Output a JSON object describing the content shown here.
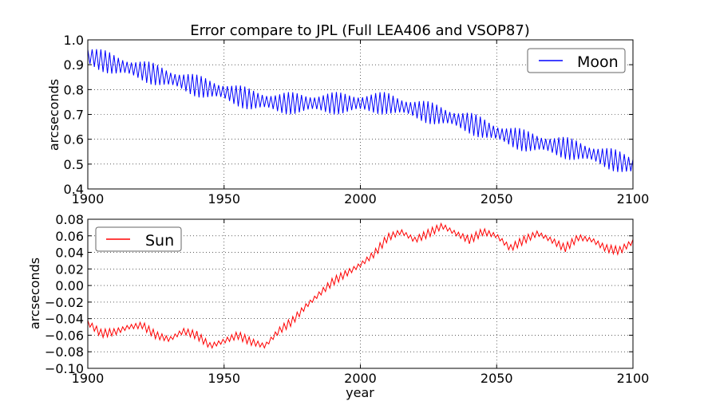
{
  "figure_title": "Error compare to JPL (Full LEA406 and VSOP87)",
  "chart_data": [
    {
      "type": "line",
      "title": "Error compare to JPL (Full LEA406 and VSOP87)",
      "xlabel": "",
      "ylabel": "arcseconds",
      "xlim": [
        1900,
        2100
      ],
      "ylim": [
        0.4,
        1.0
      ],
      "xticks": [
        1900,
        1950,
        2000,
        2050,
        2100
      ],
      "yticks": [
        0.4,
        0.5,
        0.6,
        0.7,
        0.8,
        0.9,
        1.0
      ],
      "ytick_labels": [
        "0.4",
        "0.5",
        "0.6",
        "0.7",
        "0.8",
        "0.9",
        "1.0"
      ],
      "grid": true,
      "legend": "top-right",
      "series": [
        {
          "name": "Moon",
          "color": "#0000ff",
          "x": [
            1900,
            1910,
            1920,
            1930,
            1940,
            1950,
            1960,
            1970,
            1980,
            1990,
            2000,
            2010,
            2020,
            2030,
            2040,
            2050,
            2060,
            2070,
            2080,
            2090,
            2100
          ],
          "y_mid": [
            0.935,
            0.9,
            0.875,
            0.845,
            0.815,
            0.79,
            0.76,
            0.745,
            0.745,
            0.745,
            0.745,
            0.745,
            0.72,
            0.695,
            0.665,
            0.625,
            0.595,
            0.575,
            0.555,
            0.525,
            0.495
          ],
          "amplitude": 0.045,
          "oscillation_period_years": 1.6
        }
      ]
    },
    {
      "type": "line",
      "title": "",
      "xlabel": "year",
      "ylabel": "arcseconds",
      "xlim": [
        1900,
        2100
      ],
      "ylim": [
        -0.1,
        0.08
      ],
      "xticks": [
        1900,
        1950,
        2000,
        2050,
        2100
      ],
      "yticks": [
        -0.1,
        -0.08,
        -0.06,
        -0.04,
        -0.02,
        0.0,
        0.02,
        0.04,
        0.06,
        0.08
      ],
      "ytick_labels": [
        "−0.10",
        "−0.08",
        "−0.06",
        "−0.04",
        "−0.02",
        "0.00",
        "0.02",
        "0.04",
        "0.06",
        "0.08"
      ],
      "grid": true,
      "legend": "top-left",
      "series": [
        {
          "name": "Sun",
          "color": "#ff0000",
          "x": [
            1900,
            1905,
            1910,
            1915,
            1920,
            1925,
            1930,
            1935,
            1940,
            1945,
            1950,
            1955,
            1960,
            1965,
            1970,
            1975,
            1980,
            1985,
            1990,
            1995,
            2000,
            2005,
            2010,
            2015,
            2020,
            2025,
            2030,
            2035,
            2040,
            2045,
            2050,
            2055,
            2060,
            2065,
            2070,
            2075,
            2080,
            2085,
            2090,
            2095,
            2100
          ],
          "y_mid": [
            -0.045,
            -0.058,
            -0.056,
            -0.05,
            -0.048,
            -0.06,
            -0.065,
            -0.055,
            -0.06,
            -0.073,
            -0.067,
            -0.06,
            -0.068,
            -0.073,
            -0.055,
            -0.043,
            -0.025,
            -0.01,
            0.005,
            0.015,
            0.025,
            0.038,
            0.058,
            0.065,
            0.055,
            0.063,
            0.072,
            0.063,
            0.055,
            0.065,
            0.06,
            0.045,
            0.055,
            0.063,
            0.055,
            0.045,
            0.058,
            0.055,
            0.045,
            0.042,
            0.053
          ],
          "amplitude": 0.005,
          "oscillation_period_years": 1.6
        }
      ]
    }
  ]
}
